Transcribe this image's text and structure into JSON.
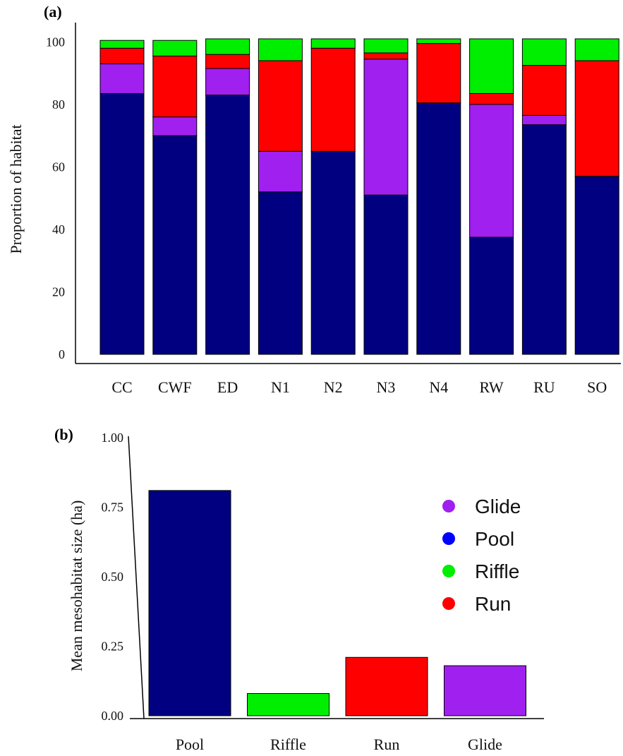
{
  "chart_data": [
    {
      "panel": "(a)",
      "type": "bar",
      "stacked": true,
      "ylabel": "Proportion of habitat",
      "xlabel": "",
      "ylim": [
        0,
        101
      ],
      "yticks": [
        0,
        20,
        40,
        60,
        80,
        100
      ],
      "categories": [
        "CC",
        "CWF",
        "ED",
        "N1",
        "N2",
        "N3",
        "N4",
        "RW",
        "RU",
        "SO"
      ],
      "series": [
        {
          "name": "Pool",
          "color": "#000080",
          "values": [
            83.5,
            70,
            83,
            52,
            65,
            51,
            80.5,
            37.5,
            73.5,
            57
          ]
        },
        {
          "name": "Glide",
          "color": "#a020f0",
          "values": [
            9.5,
            6,
            8.5,
            13,
            0,
            43.5,
            0,
            42.5,
            3,
            0
          ]
        },
        {
          "name": "Run",
          "color": "#ff0000",
          "values": [
            5,
            19.5,
            4.5,
            29,
            33,
            2,
            19,
            3.5,
            16,
            37
          ]
        },
        {
          "name": "Riffle",
          "color": "#00ee00",
          "values": [
            2.5,
            5,
            5,
            7,
            3,
            4.5,
            1.5,
            17.5,
            8.5,
            7
          ]
        }
      ]
    },
    {
      "panel": "(b)",
      "type": "bar",
      "ylabel": "Mean mesohabitat size (ha)",
      "xlabel": "",
      "ylim": [
        0,
        1.0
      ],
      "yticks": [
        "0.00",
        "0.25",
        "0.50",
        "0.75",
        "1.00"
      ],
      "categories": [
        "Pool",
        "Riffle",
        "Run",
        "Glide"
      ],
      "values": [
        0.81,
        0.08,
        0.21,
        0.18
      ],
      "colors": [
        "#000080",
        "#00ee00",
        "#ff0000",
        "#a020f0"
      ],
      "legend": {
        "placement": "right",
        "entries": [
          {
            "label": "Glide",
            "color": "#a020f0"
          },
          {
            "label": "Pool",
            "color": "#0000ff"
          },
          {
            "label": "Riffle",
            "color": "#00ee00"
          },
          {
            "label": "Run",
            "color": "#ff0000"
          }
        ]
      }
    }
  ]
}
